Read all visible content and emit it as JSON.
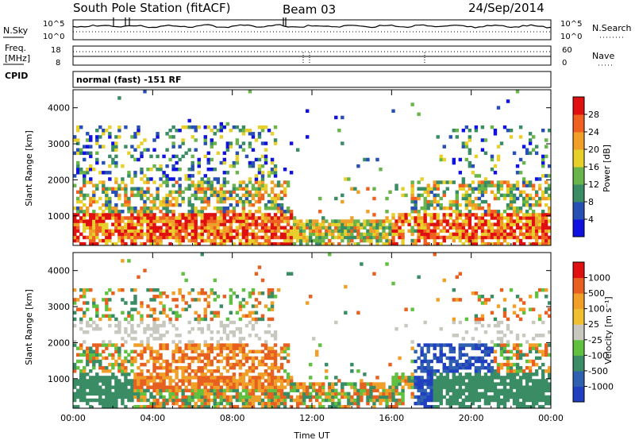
{
  "header": {
    "title": "South Pole Station (fitACF)",
    "beam": "Beam 03",
    "date": "24/Sep/2014"
  },
  "strip_labels": {
    "nsky": "N.Sky",
    "nsky_ticks": [
      "10^5",
      "10^0"
    ],
    "nsearch": "N.Search",
    "nsearch_ticks": [
      "10^5",
      "10^0"
    ],
    "freq_top": "Freq.",
    "freq_unit": "[MHz]",
    "freq_ticks": [
      "18",
      "8"
    ],
    "nave": "Nave",
    "nave_ticks": [
      "60",
      "0"
    ],
    "cpid": "CPID",
    "cpid_text": "normal (fast) -151 RF"
  },
  "chart_data": [
    {
      "type": "heatmap",
      "name": "Power",
      "ylabel": "Slant Range [km]",
      "xlabel": "",
      "x_ticks": [
        "00:00",
        "04:00",
        "08:00",
        "12:00",
        "16:00",
        "20:00",
        "00:00"
      ],
      "y_ticks": [
        1000,
        2000,
        3000,
        4000
      ],
      "xlim_hours": [
        0,
        24
      ],
      "ylim_km": [
        180,
        4500
      ],
      "colorbar": {
        "label": "Power [dB]",
        "ticks": [
          "28",
          "24",
          "20",
          "16",
          "12",
          "8",
          "4"
        ],
        "colors": [
          "#1010e0",
          "#2850b4",
          "#3a8c64",
          "#6ab44c",
          "#e8d02c",
          "#f0a028",
          "#f06020",
          "#e01010"
        ]
      }
    },
    {
      "type": "heatmap",
      "name": "Velocity",
      "ylabel": "Slant Range [km]",
      "xlabel": "Time UT",
      "x_ticks": [
        "00:00",
        "04:00",
        "08:00",
        "12:00",
        "16:00",
        "20:00",
        "00:00"
      ],
      "y_ticks": [
        1000,
        2000,
        3000,
        4000
      ],
      "xlim_hours": [
        0,
        24
      ],
      "ylim_km": [
        180,
        4500
      ],
      "colorbar": {
        "label": "Velocity [m s⁻¹]",
        "ticks": [
          "1000",
          "500",
          "100",
          "25",
          "-25",
          "-100",
          "-500",
          "-1000"
        ],
        "colors": [
          "#2040c0",
          "#3060b0",
          "#3a8c64",
          "#60c040",
          "#c8c8c0",
          "#f0c030",
          "#f0a028",
          "#e86020",
          "#e01010"
        ]
      }
    }
  ]
}
